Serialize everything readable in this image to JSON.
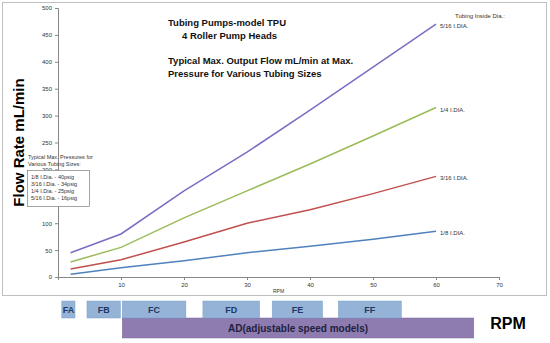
{
  "chart_data": {
    "type": "line",
    "title": "Tubing Pumps-model TPU",
    "subtitle": "4 Roller Pump Heads",
    "annotations": [
      "Typical Max. Output Flow mL/min at Max.",
      "Pressure for  Various Tubing Sizes"
    ],
    "y_label": "Flow Rate mL/min",
    "x_label": "RPM",
    "legend_title": "Tubing Inside Dia.:",
    "x": [
      2,
      10,
      20,
      30,
      40,
      50,
      60
    ],
    "xlim": [
      0,
      70
    ],
    "xticks": [
      10,
      20,
      30,
      40,
      50,
      60,
      70
    ],
    "ylim": [
      0,
      500
    ],
    "yticks": [
      0,
      50,
      100,
      150,
      200,
      250,
      300,
      350,
      400,
      450,
      500
    ],
    "grid": false,
    "series": [
      {
        "name": "5/16 I.DIA.",
        "color": "#7b6cc4",
        "values": [
          45,
          80,
          160,
          232,
          310,
          390,
          470
        ]
      },
      {
        "name": "1/4 I.DIA.",
        "color": "#9bbb59",
        "values": [
          28,
          55,
          110,
          160,
          210,
          262,
          315
        ]
      },
      {
        "name": "3/16 I.DIA.",
        "color": "#c0504d",
        "values": [
          15,
          32,
          65,
          100,
          125,
          155,
          187
        ]
      },
      {
        "name": "1/8 I.DIA.",
        "color": "#4f81bd",
        "values": [
          5,
          17,
          30,
          45,
          57,
          70,
          85
        ]
      }
    ],
    "pressure_table": {
      "title": [
        "Typical Max. Pressures for",
        "Various Tubing Sizes:"
      ],
      "rows": [
        "1/8 I.Dia. - 40psig",
        "3/16 I.Dia. - 34psig",
        "1/4 I.Dia. - 25psig",
        "5/16 I.Dia. - 16psig"
      ]
    },
    "fixed_speed_ranges": [
      {
        "label": "FA",
        "start": 0.6,
        "end": 2.7
      },
      {
        "label": "FB",
        "start": 4.6,
        "end": 9.9
      },
      {
        "label": "FC",
        "start": 10.2,
        "end": 20.3
      },
      {
        "label": "FD",
        "start": 23,
        "end": 32
      },
      {
        "label": "FE",
        "start": 34,
        "end": 42
      },
      {
        "label": "FF",
        "start": 44.5,
        "end": 54.5
      }
    ],
    "adjustable_speed_range": {
      "label": "AD(adjustable speed models)",
      "start": 10.2,
      "end": 66
    },
    "range_axis_label": "RPM"
  }
}
